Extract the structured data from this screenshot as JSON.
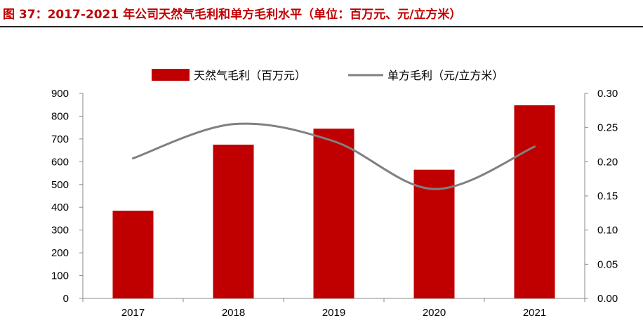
{
  "figure": {
    "title": "图 37：2017-2021 年公司天然气毛利和单方毛利水平（单位：百万元、元/立方米）"
  },
  "colors": {
    "title": "#c00000",
    "bar": "#c00000",
    "line": "#808080"
  },
  "chart_data": {
    "type": "bar",
    "categories": [
      "2017",
      "2018",
      "2019",
      "2020",
      "2021"
    ],
    "series": [
      {
        "name": "天然气毛利（百万元）",
        "type": "bar",
        "axis": "left",
        "values": [
          385,
          675,
          745,
          565,
          848
        ]
      },
      {
        "name": "单方毛利（元/立方米）",
        "type": "line",
        "axis": "right",
        "smooth": true,
        "values": [
          0.205,
          0.255,
          0.23,
          0.16,
          0.222
        ]
      }
    ],
    "ylim_left": [
      0,
      900
    ],
    "ylim_right": [
      0,
      0.3
    ],
    "yticks_left": [
      "0",
      "100",
      "200",
      "300",
      "400",
      "500",
      "600",
      "700",
      "800",
      "900"
    ],
    "yticks_right": [
      "0.00",
      "0.05",
      "0.10",
      "0.15",
      "0.20",
      "0.25",
      "0.30"
    ],
    "grid": false,
    "legend_position": "top"
  }
}
